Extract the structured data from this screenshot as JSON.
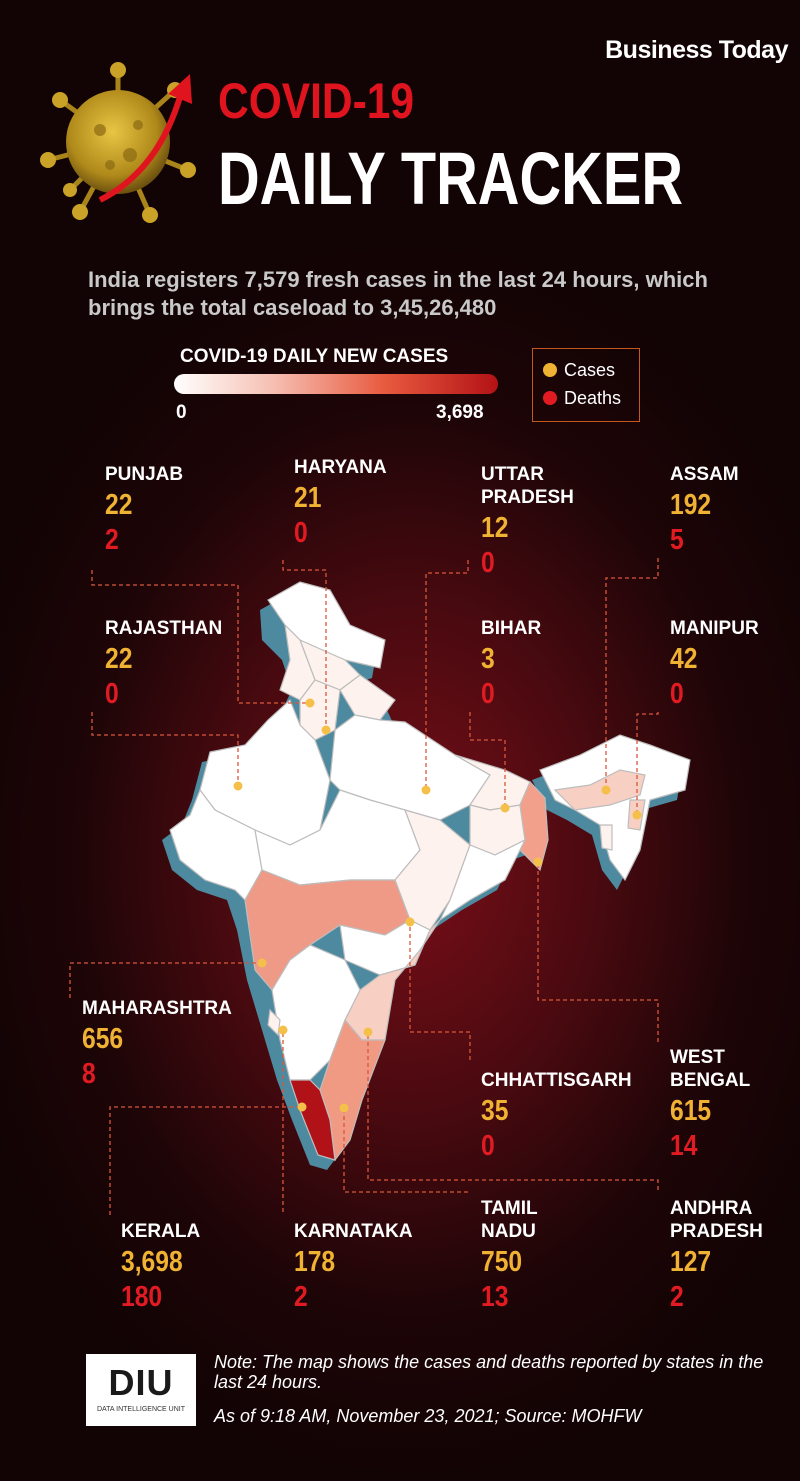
{
  "brand": "Business Today",
  "title_line1": "COVID-19",
  "title_line2": "DAILY TRACKER",
  "headline": "India registers 7,579 fresh cases in the last 24 hours, which brings the total caseload to 3,45,26,480",
  "scale": {
    "title": "COVID-19 DAILY NEW CASES",
    "min": "0",
    "max": "3,698"
  },
  "legend": {
    "cases": "Cases",
    "deaths": "Deaths"
  },
  "colors": {
    "cases": "#f0b233",
    "deaths": "#e21b23",
    "scale_low": "#ffffff",
    "scale_high": "#b31216"
  },
  "states": [
    {
      "name": "PUNJAB",
      "cases": "22",
      "deaths": "2"
    },
    {
      "name": "HARYANA",
      "cases": "21",
      "deaths": "0"
    },
    {
      "name": "UTTAR PRADESH",
      "cases": "12",
      "deaths": "0"
    },
    {
      "name": "ASSAM",
      "cases": "192",
      "deaths": "5"
    },
    {
      "name": "RAJASTHAN",
      "cases": "22",
      "deaths": "0"
    },
    {
      "name": "BIHAR",
      "cases": "3",
      "deaths": "0"
    },
    {
      "name": "MANIPUR",
      "cases": "42",
      "deaths": "0"
    },
    {
      "name": "MAHARASHTRA",
      "cases": "656",
      "deaths": "8"
    },
    {
      "name": "CHHATTISGARH",
      "cases": "35",
      "deaths": "0"
    },
    {
      "name": "WEST BENGAL",
      "cases": "615",
      "deaths": "14"
    },
    {
      "name": "KERALA",
      "cases": "3,698",
      "deaths": "180"
    },
    {
      "name": "KARNATAKA",
      "cases": "178",
      "deaths": "2"
    },
    {
      "name": "TAMIL NADU",
      "cases": "750",
      "deaths": "13"
    },
    {
      "name": "ANDHRA PRADESH",
      "cases": "127",
      "deaths": "2"
    }
  ],
  "logo": {
    "text": "DIU",
    "subtext": "DATA INTELLIGENCE UNIT"
  },
  "note": "Note: The map shows the cases and deaths reported by states in the last 24 hours.",
  "source": "As of 9:18 AM, November 23, 2021; Source: MOHFW"
}
